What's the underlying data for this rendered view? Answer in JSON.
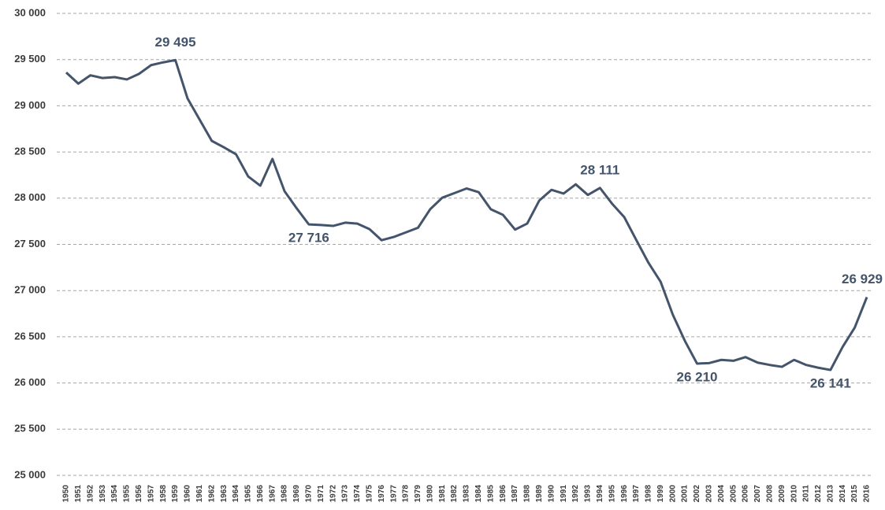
{
  "chart_data": {
    "type": "line",
    "color": "#44546a",
    "grid": true,
    "categories": [
      "1950",
      "1951",
      "1952",
      "1953",
      "1954",
      "1955",
      "1956",
      "1957",
      "1958",
      "1959",
      "1960",
      "1961",
      "1962",
      "1963",
      "1964",
      "1965",
      "1966",
      "1967",
      "1968",
      "1969",
      "1970",
      "1971",
      "1972",
      "1973",
      "1974",
      "1975",
      "1976",
      "1977",
      "1978",
      "1979",
      "1980",
      "1981",
      "1982",
      "1983",
      "1984",
      "1985",
      "1986",
      "1987",
      "1988",
      "1989",
      "1990",
      "1991",
      "1992",
      "1993",
      "1994",
      "1995",
      "1996",
      "1997",
      "1998",
      "1999",
      "2000",
      "2001",
      "2002",
      "2003",
      "2004",
      "2005",
      "2006",
      "2007",
      "2008",
      "2009",
      "2010",
      "2011",
      "2012",
      "2013",
      "2014",
      "2015",
      "2016"
    ],
    "values": [
      29360,
      29240,
      29330,
      29300,
      29310,
      29285,
      29345,
      29440,
      29470,
      29495,
      29080,
      28850,
      28620,
      28550,
      28475,
      28235,
      28135,
      28425,
      28075,
      27890,
      27716,
      27710,
      27700,
      27735,
      27725,
      27665,
      27545,
      27580,
      27630,
      27680,
      27880,
      28005,
      28055,
      28105,
      28065,
      27880,
      27820,
      27660,
      27725,
      27975,
      28090,
      28050,
      28150,
      28035,
      28111,
      27940,
      27795,
      27545,
      27300,
      27095,
      26740,
      26455,
      26210,
      26215,
      26250,
      26240,
      26280,
      26220,
      26195,
      26175,
      26250,
      26195,
      26165,
      26141,
      26390,
      26600,
      26929
    ],
    "value_labels": [
      null,
      null,
      null,
      null,
      null,
      null,
      null,
      null,
      null,
      "29 495",
      null,
      null,
      null,
      null,
      null,
      null,
      null,
      null,
      null,
      null,
      "27 716",
      null,
      null,
      null,
      null,
      null,
      null,
      null,
      null,
      null,
      null,
      null,
      null,
      null,
      null,
      null,
      null,
      null,
      null,
      null,
      null,
      null,
      null,
      null,
      "28 111",
      null,
      null,
      null,
      null,
      null,
      null,
      null,
      "26 210",
      null,
      null,
      null,
      null,
      null,
      null,
      null,
      null,
      null,
      null,
      "26 141",
      null,
      null,
      "26 929"
    ],
    "ylim": [
      25000,
      30000
    ],
    "yticks": [
      {
        "value": 25000,
        "label": "25 000"
      },
      {
        "value": 25500,
        "label": "25 500"
      },
      {
        "value": 26000,
        "label": "26 000"
      },
      {
        "value": 26500,
        "label": "26 500"
      },
      {
        "value": 27000,
        "label": "27 000"
      },
      {
        "value": 27500,
        "label": "27 500"
      },
      {
        "value": 28000,
        "label": "28 000"
      },
      {
        "value": 28500,
        "label": "28 500"
      },
      {
        "value": 29000,
        "label": "29 000"
      },
      {
        "value": 29500,
        "label": "29 500"
      },
      {
        "value": 30000,
        "label": "30 000"
      }
    ]
  }
}
